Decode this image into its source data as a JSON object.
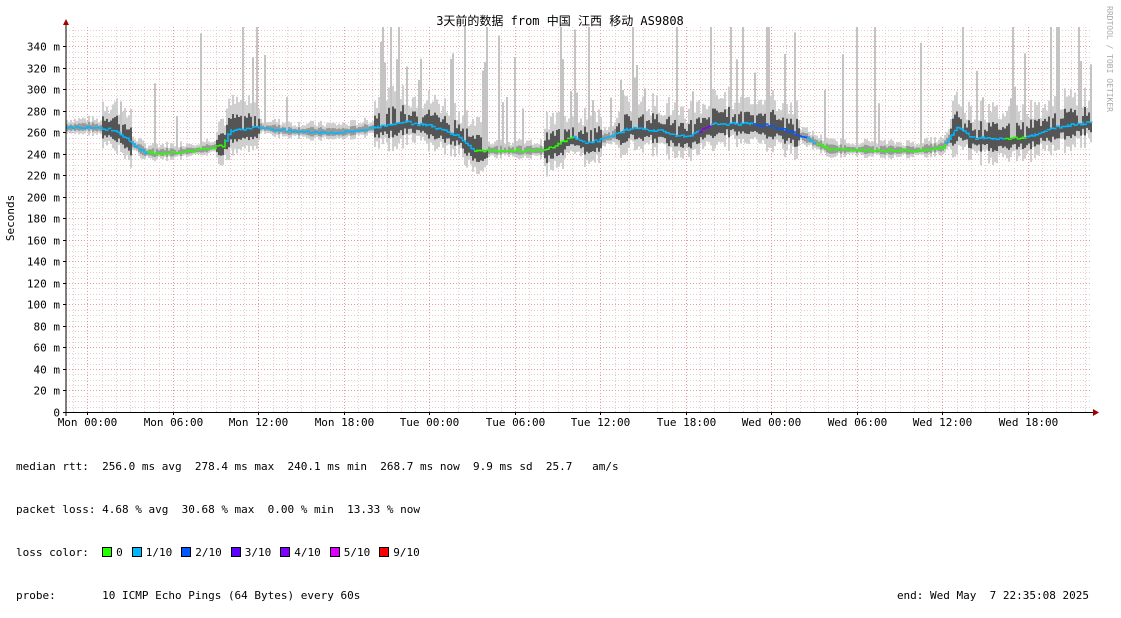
{
  "chart_data": {
    "type": "line",
    "title": "3天前的数据 from 中国 江西 移动 AS9808",
    "ylabel": "Seconds",
    "watermark": "RRDTOOL / TOBI OETIKER",
    "y_ticks": [
      "0",
      "20 m",
      "40 m",
      "60 m",
      "80 m",
      "100 m",
      "120 m",
      "140 m",
      "160 m",
      "180 m",
      "200 m",
      "220 m",
      "240 m",
      "260 m",
      "280 m",
      "300 m",
      "320 m",
      "340 m"
    ],
    "y_tick_values": [
      0,
      20,
      40,
      60,
      80,
      100,
      120,
      140,
      160,
      180,
      200,
      220,
      240,
      260,
      280,
      300,
      320,
      340
    ],
    "ylim": [
      0,
      358
    ],
    "x_unit": "hours since Mon 00:00",
    "xlim": [
      -1.5,
      70.5
    ],
    "x_ticks": [
      "Mon 00:00",
      "Mon 06:00",
      "Mon 12:00",
      "Mon 18:00",
      "Tue 00:00",
      "Tue 06:00",
      "Tue 12:00",
      "Tue 18:00",
      "Wed 00:00",
      "Wed 06:00",
      "Wed 12:00",
      "Wed 18:00"
    ],
    "x_tick_values": [
      0,
      6,
      12,
      18,
      24,
      30,
      36,
      42,
      48,
      54,
      60,
      66
    ],
    "grid": true,
    "series": [
      {
        "name": "median rtt",
        "unit": "ms",
        "x": [
          -1.5,
          0,
          2,
          3,
          4,
          6,
          8,
          9.5,
          10,
          12,
          14,
          16,
          18,
          20,
          22,
          24,
          26,
          27,
          28,
          30,
          32,
          34,
          35,
          36,
          38,
          40,
          42,
          44,
          46,
          48,
          50,
          52,
          54,
          56,
          58,
          60,
          61,
          62,
          64,
          66,
          68,
          70.5
        ],
        "values": [
          264,
          265,
          262,
          250,
          241,
          241,
          244,
          248,
          262,
          265,
          261,
          260,
          260,
          264,
          270,
          266,
          257,
          244,
          243,
          243,
          243,
          256,
          250,
          253,
          264,
          262,
          255,
          268,
          268,
          266,
          257,
          244,
          244,
          243,
          243,
          246,
          265,
          255,
          254,
          256,
          265,
          270
        ]
      }
    ]
  },
  "stats": {
    "median_label": "median rtt:",
    "median_values": "256.0 ms avg  278.4 ms max  240.1 ms min  268.7 ms now  9.9 ms sd  25.7   am/s",
    "loss_label": "packet loss:",
    "loss_values": "4.68 % avg  30.68 % max  0.00 % min  13.33 % now",
    "loss_color_label": "loss color:",
    "loss_colors": [
      {
        "label": "0",
        "color": "#26ff00"
      },
      {
        "label": "1/10",
        "color": "#00b8ff"
      },
      {
        "label": "2/10",
        "color": "#0059ff"
      },
      {
        "label": "3/10",
        "color": "#5e00ff"
      },
      {
        "label": "4/10",
        "color": "#7e00ff"
      },
      {
        "label": "5/10",
        "color": "#dd00ff"
      },
      {
        "label": "9/10",
        "color": "#ff0000"
      }
    ],
    "probe_label": "probe:",
    "probe_value": "10 ICMP Echo Pings (64 Bytes) every 60s",
    "end_text": "end: Wed May  7 22:35:08 2025"
  }
}
